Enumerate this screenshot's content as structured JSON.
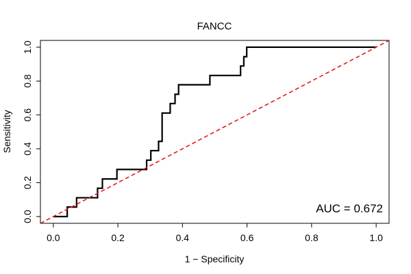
{
  "chart_data": {
    "type": "line",
    "title": "FANCC",
    "xlabel": "1 − Specificity",
    "ylabel": "Sensitivity",
    "xlim": [
      -0.04,
      1.04
    ],
    "ylim": [
      -0.04,
      1.04
    ],
    "xticks": [
      0.0,
      0.2,
      0.4,
      0.6,
      0.8,
      1.0
    ],
    "xtick_labels": [
      "0.0",
      "0.2",
      "0.4",
      "0.6",
      "0.8",
      "1.0"
    ],
    "yticks": [
      0.0,
      0.2,
      0.4,
      0.6,
      0.8,
      1.0
    ],
    "ytick_labels": [
      "0.0",
      "0.2",
      "0.4",
      "0.6",
      "0.8",
      "1.0"
    ],
    "grid": false,
    "annotation": "AUC = 0.672",
    "series": [
      {
        "color": "#000000",
        "style": "step",
        "x": [
          0.0,
          0.043,
          0.043,
          0.072,
          0.072,
          0.137,
          0.137,
          0.152,
          0.152,
          0.197,
          0.197,
          0.289,
          0.289,
          0.302,
          0.302,
          0.326,
          0.326,
          0.337,
          0.337,
          0.362,
          0.362,
          0.377,
          0.377,
          0.388,
          0.388,
          0.485,
          0.485,
          0.58,
          0.58,
          0.59,
          0.59,
          0.599,
          0.599,
          1.0
        ],
        "y": [
          0.0,
          0.0,
          0.056,
          0.056,
          0.111,
          0.111,
          0.167,
          0.167,
          0.222,
          0.222,
          0.278,
          0.278,
          0.333,
          0.333,
          0.389,
          0.389,
          0.444,
          0.444,
          0.611,
          0.611,
          0.667,
          0.667,
          0.722,
          0.722,
          0.778,
          0.778,
          0.833,
          0.833,
          0.889,
          0.889,
          0.944,
          0.944,
          1.0,
          1.0
        ]
      },
      {
        "color": "#e41a1c",
        "style": "dashed",
        "x": [
          -0.04,
          1.04
        ],
        "y": [
          -0.04,
          1.04
        ]
      }
    ]
  }
}
